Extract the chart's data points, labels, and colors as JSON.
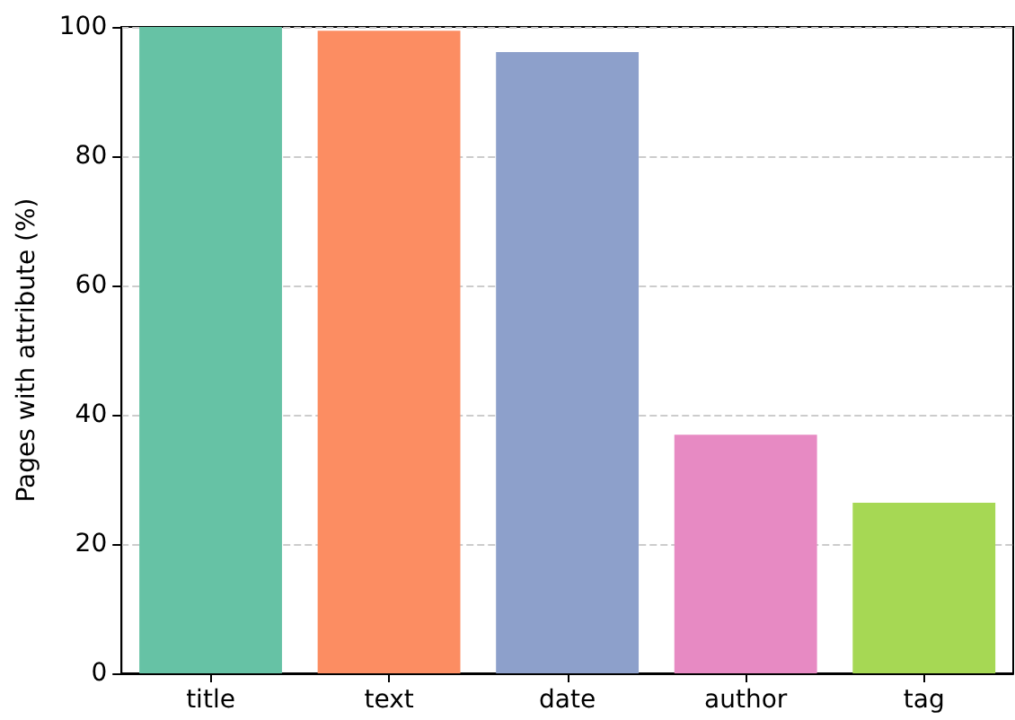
{
  "chart_data": {
    "type": "bar",
    "ylabel": "Pages with attribute (%)",
    "categories": [
      "title",
      "text",
      "date",
      "author",
      "tag"
    ],
    "values": [
      100,
      99.4,
      96.1,
      36.9,
      26.4
    ],
    "colors": [
      "#66c2a5",
      "#fc8d62",
      "#8da0cb",
      "#e78ac3",
      "#a6d854"
    ],
    "ylim": [
      0,
      100
    ],
    "yticks": [
      0,
      20,
      40,
      60,
      80,
      100
    ],
    "grid": "y"
  }
}
